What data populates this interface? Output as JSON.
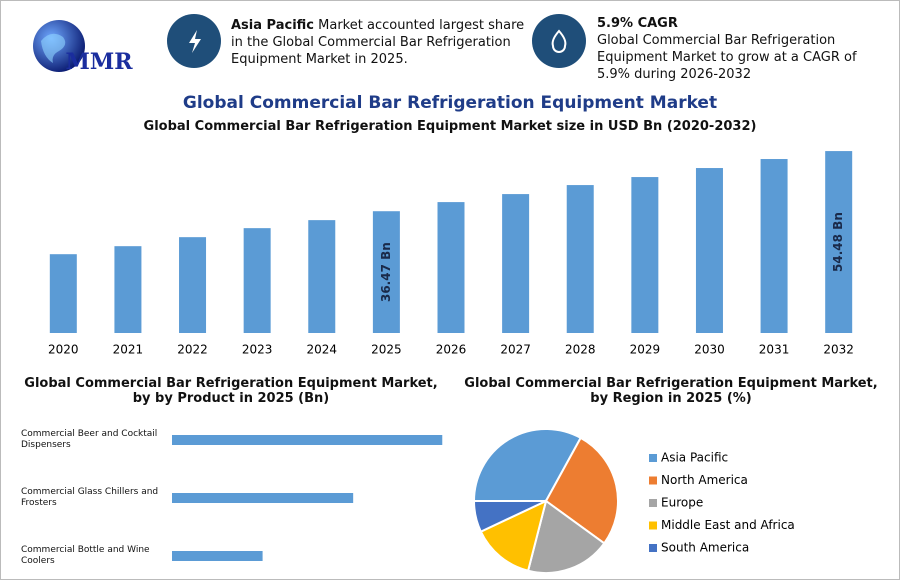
{
  "header": {
    "logo": "MMR",
    "callouts": [
      {
        "title": "Asia Pacific",
        "text": "Market accounted largest share in the Global Commercial Bar Refrigeration Equipment Market in 2025."
      },
      {
        "title": "5.9% CAGR",
        "text": "Global Commercial Bar Refrigeration Equipment Market to grow at a CAGR of 5.9% during 2026-2032"
      }
    ]
  },
  "title": "Global Commercial Bar Refrigeration Equipment Market",
  "chart_data": [
    {
      "type": "bar",
      "title": "Global Commercial Bar Refrigeration Equipment Market size in USD Bn (2020-2032)",
      "categories": [
        "2020",
        "2021",
        "2022",
        "2023",
        "2024",
        "2025",
        "2026",
        "2027",
        "2028",
        "2029",
        "2030",
        "2031",
        "2032"
      ],
      "values": [
        23.6,
        26.0,
        28.7,
        31.4,
        33.8,
        36.47,
        39.2,
        41.6,
        44.3,
        46.7,
        49.4,
        52.1,
        54.48
      ],
      "value_labels": [
        null,
        null,
        null,
        null,
        null,
        "36.47 Bn",
        null,
        null,
        null,
        null,
        null,
        null,
        "54.48 Bn"
      ],
      "color": "#5b9bd5",
      "ylim": [
        0,
        56
      ],
      "grid": false
    },
    {
      "type": "hbar",
      "title": "Global Commercial Bar Refrigeration Equipment Market, by by Product in 2025 (Bn)",
      "categories": [
        "Commercial Beer and Cocktail Dispensers",
        "Commercial Glass Chillers and Frosters",
        "Commercial Bottle and Wine Coolers"
      ],
      "values": [
        18.2,
        12.2,
        6.1
      ],
      "color": "#5b9bd5",
      "xlim": [
        0,
        20
      ],
      "grid": false
    },
    {
      "type": "pie",
      "title": "Global Commercial Bar Refrigeration Equipment Market, by Region in 2025 (%)",
      "categories": [
        "Asia Pacific",
        "North America",
        "Europe",
        "Middle East and Africa",
        "South America"
      ],
      "values": [
        33,
        27,
        19,
        14,
        7
      ],
      "colors": [
        "#5b9bd5",
        "#ed7d31",
        "#a5a5a5",
        "#ffc000",
        "#4472c4"
      ],
      "legend": "right"
    }
  ]
}
